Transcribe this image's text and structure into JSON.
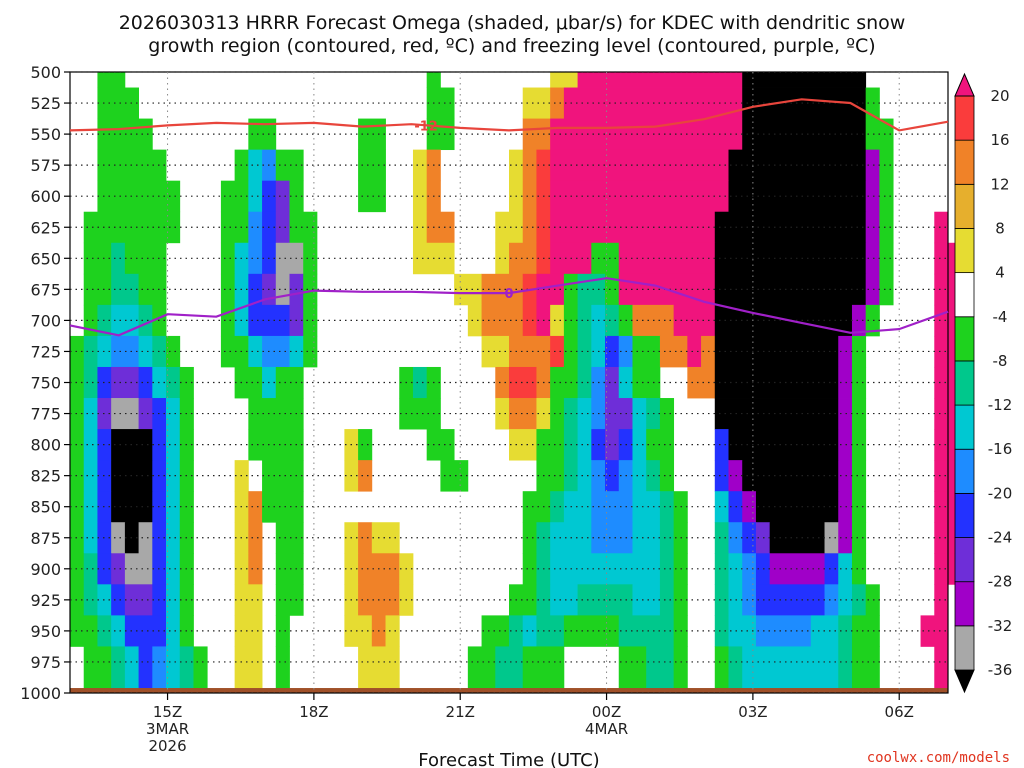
{
  "title": {
    "line1": "2026030313 HRRR Forecast Omega (shaded, μbar/s) for KDEC with dendritic snow",
    "line2": "growth region (contoured, red, ºC) and freezing level (contoured, purple, ºC)"
  },
  "credit": "coolwx.com/models",
  "chart_data": {
    "type": "heatmap",
    "title": "2026030313 HRRR Forecast Omega (shaded, μbar/s) for KDEC with dendritic snow growth region (contoured, red, ºC) and freezing level (contoured, purple, ºC)",
    "xlabel": "Forecast Time (UTC)",
    "ylabel": "",
    "x_ticks": [
      {
        "label": "15Z",
        "sub1": "3MAR",
        "sub2": "2026",
        "hour": 2
      },
      {
        "label": "18Z",
        "sub1": "",
        "sub2": "",
        "hour": 5
      },
      {
        "label": "21Z",
        "sub1": "",
        "sub2": "",
        "hour": 8
      },
      {
        "label": "00Z",
        "sub1": "4MAR",
        "sub2": "",
        "hour": 11
      },
      {
        "label": "03Z",
        "sub1": "",
        "sub2": "",
        "hour": 14
      },
      {
        "label": "06Z",
        "sub1": "",
        "sub2": "",
        "hour": 17
      }
    ],
    "x_range_hours": [
      0,
      18
    ],
    "y_ticks": [
      "500",
      "525",
      "550",
      "575",
      "600",
      "625",
      "650",
      "675",
      "700",
      "725",
      "750",
      "775",
      "800",
      "825",
      "850",
      "875",
      "900",
      "925",
      "950",
      "975",
      "1000"
    ],
    "ylim": [
      1000,
      500
    ],
    "grid": true,
    "colorbar": {
      "levels": [
        "-36",
        "-32",
        "-28",
        "-24",
        "-20",
        "-16",
        "-12",
        "-8",
        "-4",
        "4",
        "8",
        "12",
        "16",
        "20"
      ],
      "bins": [
        {
          "key": "k",
          "color": "#000000"
        },
        {
          "key": "g",
          "color": "#a8a8a8"
        },
        {
          "key": "v",
          "color": "#a000c8"
        },
        {
          "key": "p",
          "color": "#6e2ed8"
        },
        {
          "key": "b",
          "color": "#2332ff"
        },
        {
          "key": "m",
          "color": "#1e8cff"
        },
        {
          "key": "c",
          "color": "#00c8d2"
        },
        {
          "key": "t",
          "color": "#00c88c"
        },
        {
          "key": "G",
          "color": "#1ed21e"
        },
        {
          "key": "w",
          "color": "#ffffff"
        },
        {
          "key": "y",
          "color": "#e6dc32"
        },
        {
          "key": "o",
          "color": "#e6af2d"
        },
        {
          "key": "O",
          "color": "#f08228"
        },
        {
          "key": "r",
          "color": "#fa3c3c"
        },
        {
          "key": "M",
          "color": "#f0147d"
        }
      ]
    },
    "omega_grid": {
      "pressure_levels": [
        "500",
        "525",
        "550",
        "575",
        "600",
        "625",
        "650",
        "675",
        "700",
        "725",
        "750",
        "775",
        "800",
        "825",
        "850",
        "875",
        "900",
        "925",
        "950",
        "975"
      ],
      "rows": [
        "wwGGwwwwwwwwwwwwwwwwwwwwwwGwwwwwwwwyyMMMMMMMMMMMMkkkkkkkkkwwwwww",
        "wwGGGwwwwwwwwwwwwwwwwwwwwwGGwwwwwyyOMMMMMMMMMMMMMkkkkkkkkkGwwwww",
        "wwGGGGwwwwwwwGGwwwwwwGGwwwGGwwwwwOOMMMMMMMMMMMMMMkkkkkkkkkGGwwww",
        "wwGGGGGwwwwwGcmGGwwwwGGwwyOwwwwwyOrMMMMMMMMMMMMMkkkkkkkkkkvGwwwww",
        "wwGGGGGGwwwGGcbpGwwwwGGwwyOwwwwwyOrMMMMMMMMMMMMMkkkkkkkkkkvGwwwww",
        "wGGGGGGGwwwGGmbpGGwwwwwwwyOOwwwyyOrMMMMMMMMMMMMkkkkkkkkkkkvGwwwMw",
        "wGGtGGGwwwwGcmbggGwwwwwwwyyywwwyOOrMMMGGMMMMMMMkkkkkkkkkkkvGwwwMM",
        "wGGttGGwwwwGcbpgpGwwwwwwwwwwyyOOOrMMGttGMMMMMMMkkkkkkkkkkkvGwwwMM",
        "wGtcctGwwwwGcbbbpGwwwwwwwwwwwyOOOrMyGtctGOOOMMMkkkkkkkkkkvGwwwwMM",
        "GtcmmctGwwwGGcmmcGwwwwwwwwwwwwyyOOOrGtcbmGGOOMOkkkkkkkkkvGwwwwwMM",
        "GtbppbctGwwwGGcGGwwwwwwwGtGwwwwOrrOGGtmpcGGwwOOkkkkkkkkkvGwwwwwMM",
        "GcpggpbcGwwwwGGGGwwwwwwwGGGwwwwyOOyGtcmppctGwwwkkkkkkkkkvGwwwwwMM",
        "GcbkkkbcGwwwwGGGGwwwyGwwwwGGwwwwyyGGtcbpbcGGwwwbkkkkkkkkvGwwwwwMM",
        "GcbkkkbcGwwwywGGGwwwyOwwwwwGGwwwwwGGtcmbmctGwwwbvkkkkkkkvGwwwwwMM",
        "GcbkkkbcGwwwyOGGGwwwwwwwwwwwwwwwwGGtccmmmcctGwwcbvkkkkkkvGwwwwwMM",
        "GcbgkgbcGwwwyOwGGwwwyOyywwwwwwwwwGtcccmmmcctGwwtmbpkkkkgvGwwwwwMM",
        "GtbpggbcGwwwyOwGGwwwyOOOywwwwwwwwGtcccccccctGwwtcmbvvvvbcGwwwwwMM",
        "GtcbppbcGwwwyywGGwwwyOOOywwwwwwwGGtccttttcctGwwtcmbbbbbmctGwwwwMw",
        "GGtcbbbcGwwwyywGwwwwyyOywwwwwwGGtcttGGGGttttGwwtccmmmmcctGGwwwMMw",
        "wGGtcbmctGwwyywGwwwwwyyywwwwwGGttGGGwwwwGGttGwwGtccccccctGGwwwwMw"
      ],
      "x_hour_start": 0,
      "x_hour_step": 0.28125
    },
    "series": [
      {
        "name": "-12",
        "color": "#e8453c",
        "hours": [
          0,
          1,
          2,
          3,
          4,
          5,
          6,
          7,
          8,
          9,
          10,
          11,
          12,
          13,
          14,
          15,
          16,
          17,
          18
        ],
        "pressure": [
          547,
          546,
          543,
          541,
          542,
          541,
          544,
          542,
          545,
          547,
          545,
          545,
          544,
          538,
          528,
          522,
          525,
          547,
          540
        ],
        "label_hour": 7.3
      },
      {
        "name": "0",
        "color": "#a020c8",
        "hours": [
          0,
          1,
          2,
          3,
          4,
          5,
          6,
          7,
          8,
          9,
          10,
          11,
          12,
          13,
          14,
          15,
          16,
          17,
          18
        ],
        "pressure": [
          704,
          712,
          695,
          697,
          683,
          676,
          677,
          677,
          678,
          678,
          672,
          666,
          672,
          685,
          694,
          702,
          710,
          707,
          693
        ],
        "label_hour": 9.0
      }
    ],
    "terrain": {
      "color": "#a05028",
      "pressure_top": 996
    }
  }
}
